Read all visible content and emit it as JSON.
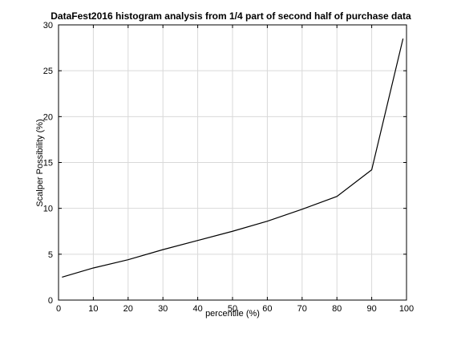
{
  "chart_data": {
    "type": "line",
    "title": "DataFest2016 histogram analysis from 1/4 part of second half of purchase data",
    "xlabel": "percentile (%)",
    "ylabel": "Scalper Possibility (%)",
    "xlim": [
      0,
      100
    ],
    "ylim": [
      0,
      30
    ],
    "xticks": [
      0,
      10,
      20,
      30,
      40,
      50,
      60,
      70,
      80,
      90,
      100
    ],
    "yticks": [
      0,
      5,
      10,
      15,
      20,
      25,
      30
    ],
    "grid": true,
    "colors": {
      "line": "#000000",
      "grid": "#d9d9d9",
      "axes": "#000000"
    },
    "series": [
      {
        "x": [
          1,
          10,
          20,
          30,
          40,
          50,
          60,
          70,
          80,
          90,
          99
        ],
        "y": [
          2.5,
          3.5,
          4.4,
          5.5,
          6.5,
          7.5,
          8.6,
          9.9,
          11.3,
          14.2,
          28.5
        ]
      }
    ]
  }
}
